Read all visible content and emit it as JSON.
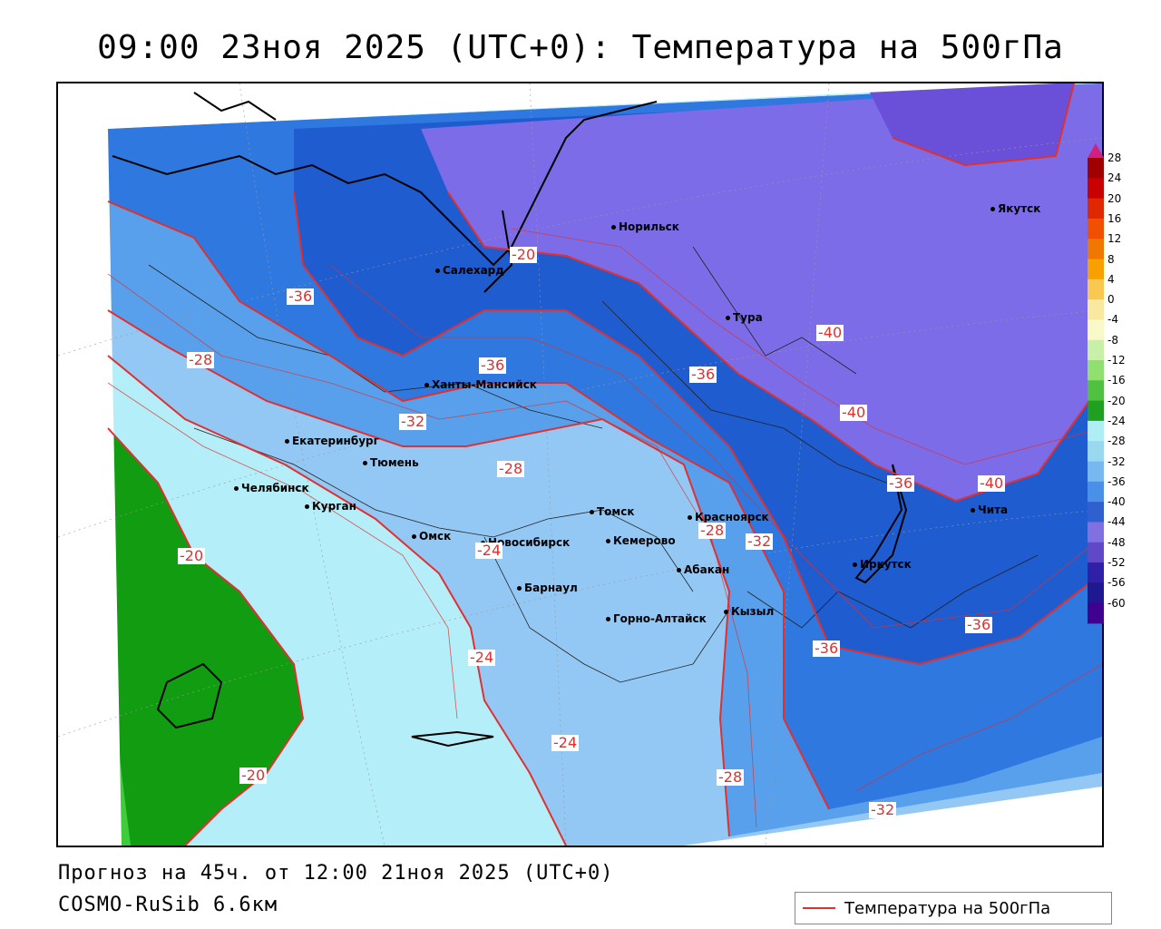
{
  "header": {
    "title": "09:00 23ноя 2025 (UTC+0): Температура на 500гПа"
  },
  "footer": {
    "forecast_line": "Прогноз на 45ч. от 12:00 21ноя 2025 (UTC+0)",
    "model_line": "COSMO-RuSib 6.6км"
  },
  "legend": {
    "label": "Температура на 500гПа",
    "line_color": "#e03030"
  },
  "colorbar": {
    "labels": [
      "28",
      "24",
      "20",
      "16",
      "12",
      "8",
      "4",
      "0",
      "-4",
      "-8",
      "-12",
      "-16",
      "-20",
      "-24",
      "-28",
      "-32",
      "-36",
      "-40",
      "-44",
      "-48",
      "-52",
      "-56",
      "-60"
    ],
    "colors": [
      "#a00000",
      "#c80000",
      "#e02800",
      "#f05000",
      "#f07800",
      "#f8a000",
      "#f8c850",
      "#f8e8a0",
      "#f8f8c8",
      "#c8f0a8",
      "#90e070",
      "#50c040",
      "#20a020",
      "#b0eef5",
      "#9ad8f0",
      "#78b8f0",
      "#4a90e8",
      "#3060d0",
      "#8070e0",
      "#6048c8",
      "#3020a8",
      "#201890",
      "#400090"
    ],
    "arrow_top_color": "#d02080",
    "arrow_bottom_color": "#d02080"
  },
  "cities": [
    {
      "name": "Норильск"
    },
    {
      "name": "Якутск"
    },
    {
      "name": "Салехард"
    },
    {
      "name": "Тура"
    },
    {
      "name": "Ханты-Мансийск"
    },
    {
      "name": "Екатеринбург"
    },
    {
      "name": "Тюмень"
    },
    {
      "name": "Челябинск"
    },
    {
      "name": "Курган"
    },
    {
      "name": "Омск"
    },
    {
      "name": "Новосибирск"
    },
    {
      "name": "Томск"
    },
    {
      "name": "Кемерово"
    },
    {
      "name": "Красноярск"
    },
    {
      "name": "Барнаул"
    },
    {
      "name": "Абакан"
    },
    {
      "name": "Горно-Алтайск"
    },
    {
      "name": "Кызыл"
    },
    {
      "name": "Иркутск"
    },
    {
      "name": "Чита"
    }
  ],
  "contour_labels": [
    "-20",
    "-36",
    "-28",
    "-36",
    "-32",
    "-28",
    "-36",
    "-40",
    "-40",
    "-36",
    "-40",
    "-28",
    "-32",
    "-24",
    "-20",
    "-24",
    "-24",
    "-36",
    "-36",
    "-28",
    "-32",
    "-20"
  ],
  "colors": {
    "contour": "#e03030",
    "green_dark": "#129c12",
    "green_light": "#3ccc3c",
    "cyan_light": "#b4eef8",
    "blue_pale": "#94c8f4",
    "blue_mid": "#58a0ec",
    "blue": "#2e78e0",
    "blue_dark": "#1e5cd0",
    "purple": "#7c6ce8",
    "purple_dark": "#6a50d8"
  }
}
